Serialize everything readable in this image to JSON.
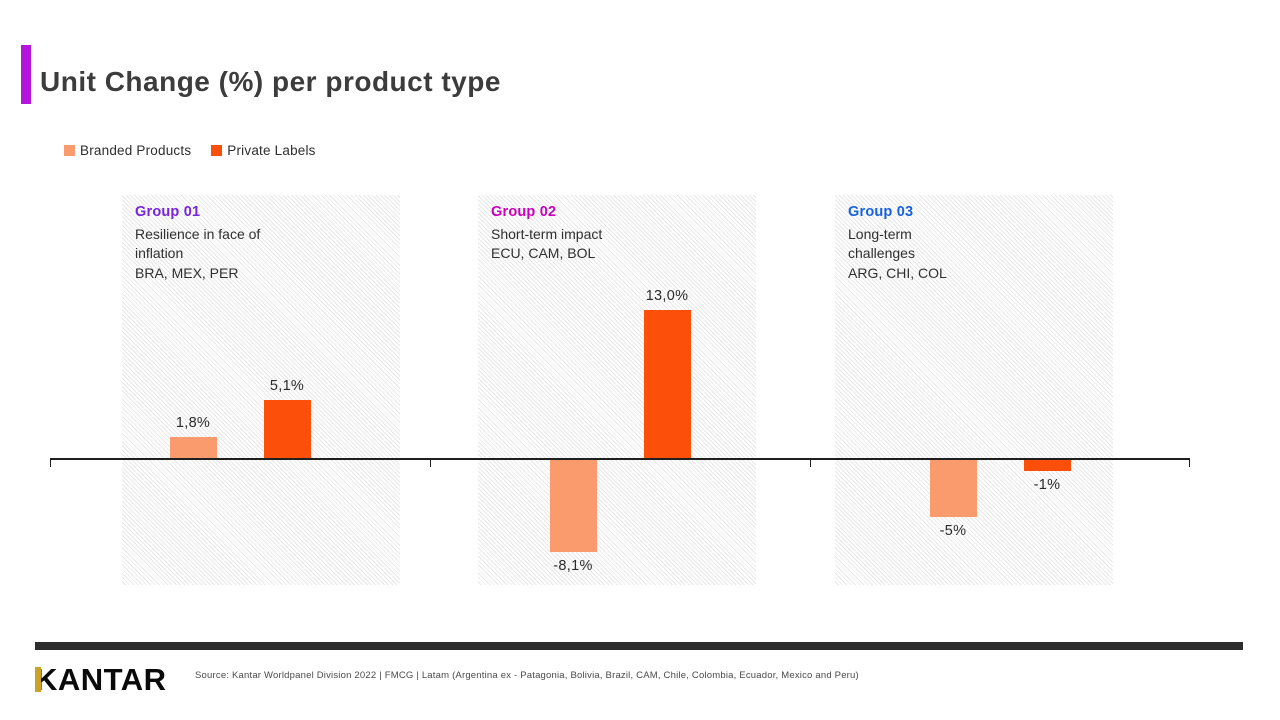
{
  "accent_color": "#B414DC",
  "title": "Unit Change (%) per product type",
  "legend": {
    "items": [
      {
        "label": "Branded Products",
        "color": "#F99B6C"
      },
      {
        "label": "Private Labels",
        "color": "#FC4F0A"
      }
    ]
  },
  "chart_data": {
    "type": "bar",
    "title": "Unit Change (%) per product type",
    "categories": [
      "Group 01",
      "Group 02",
      "Group 03"
    ],
    "series": [
      {
        "name": "Branded Products",
        "color": "#F99B6C",
        "values": [
          1.8,
          -8.1,
          -5
        ]
      },
      {
        "name": "Private Labels",
        "color": "#FC4F0A",
        "values": [
          5.1,
          13.0,
          -1
        ]
      }
    ],
    "value_labels": [
      [
        "1,8%",
        "5,1%"
      ],
      [
        "-8,1%",
        "13,0%"
      ],
      [
        "-5%",
        "-1%"
      ]
    ],
    "groups": [
      {
        "label": "Group 01",
        "label_color": "#7823DC",
        "description": "Resilience in face of\ninflation",
        "countries": "BRA, MEX, PER"
      },
      {
        "label": "Group 02",
        "label_color": "#CB00BE",
        "description": "Short-term impact",
        "countries": "ECU, CAM, BOL"
      },
      {
        "label": "Group 03",
        "label_color": "#1762E0",
        "description": "Long-term\nchallenges",
        "countries": "ARG, CHI, COL"
      }
    ],
    "baseline": 0,
    "ylim": [
      -10,
      15
    ],
    "grid": false,
    "legend_position": "top-left"
  },
  "footer": {
    "logo_text": "KANTAR",
    "logo_accent_color": "#C9A227",
    "source": "Source: Kantar Worldpanel Division 2022 | FMCG | Latam (Argentina ex - Patagonia, Bolivia, Brazil, CAM, Chile, Colombia, Ecuador, Mexico and Peru)"
  }
}
